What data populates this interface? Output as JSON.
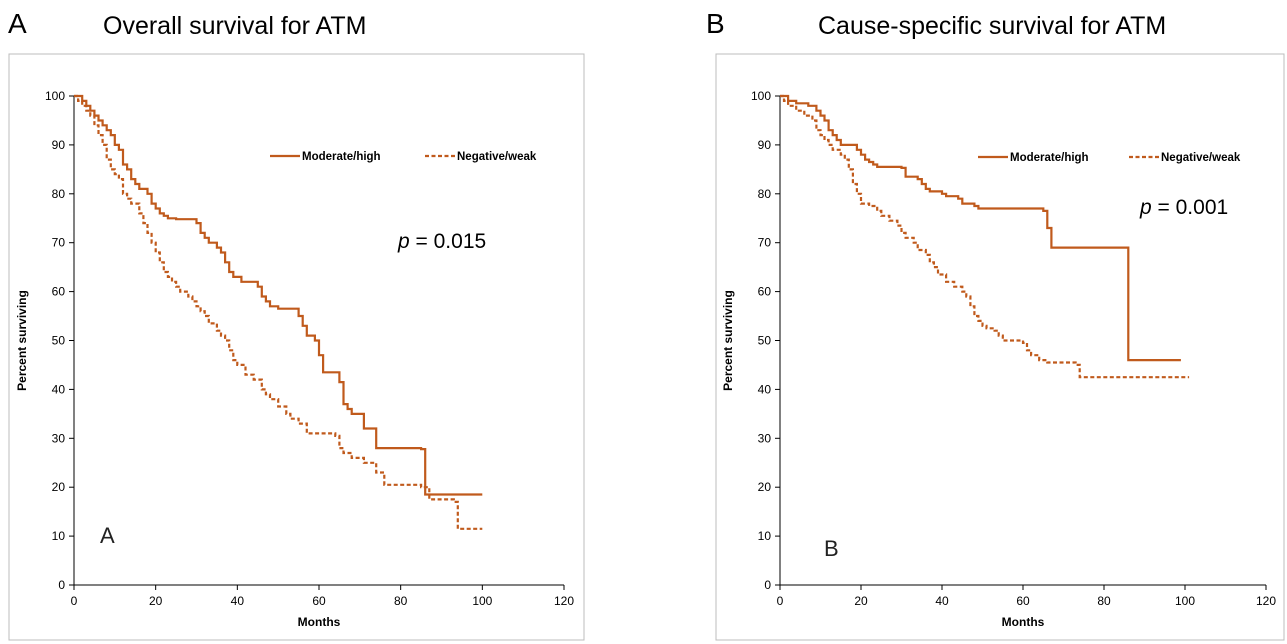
{
  "colors": {
    "series": "#c05a1c",
    "frame": "#bcbcbc"
  },
  "chart_data": [
    {
      "type": "line",
      "panel_letter": "A",
      "title": "Overall survival for ATM",
      "inner_letter": "A",
      "xlabel": "Months",
      "ylabel": "Percent surviving",
      "xlim": [
        0,
        120
      ],
      "ylim": [
        0,
        100
      ],
      "x_ticks": [
        0,
        20,
        40,
        60,
        80,
        100,
        120
      ],
      "y_ticks": [
        0,
        10,
        20,
        30,
        40,
        50,
        60,
        70,
        80,
        90,
        100
      ],
      "p_label": "p",
      "p_value": " = 0.015",
      "legend_position": "top-right",
      "series": [
        {
          "name": "Moderate/high",
          "style": "solid",
          "points": [
            [
              0,
              100
            ],
            [
              2,
              99
            ],
            [
              3,
              98
            ],
            [
              4,
              97
            ],
            [
              5,
              96
            ],
            [
              6,
              95
            ],
            [
              7,
              94
            ],
            [
              8,
              93
            ],
            [
              9,
              92
            ],
            [
              10,
              90
            ],
            [
              11,
              89
            ],
            [
              12,
              86
            ],
            [
              13,
              85
            ],
            [
              14,
              83
            ],
            [
              15,
              82
            ],
            [
              16,
              81
            ],
            [
              18,
              80
            ],
            [
              19,
              78
            ],
            [
              20,
              77
            ],
            [
              21,
              76
            ],
            [
              22,
              75.5
            ],
            [
              23,
              75
            ],
            [
              25,
              74.8
            ],
            [
              30,
              74
            ],
            [
              31,
              72
            ],
            [
              32,
              71
            ],
            [
              33,
              70
            ],
            [
              35,
              69
            ],
            [
              36,
              68
            ],
            [
              37,
              66
            ],
            [
              38,
              64
            ],
            [
              39,
              63
            ],
            [
              41,
              62
            ],
            [
              45,
              61
            ],
            [
              46,
              59
            ],
            [
              47,
              58
            ],
            [
              48,
              57
            ],
            [
              50,
              56.5
            ],
            [
              55,
              55
            ],
            [
              56,
              53
            ],
            [
              57,
              51
            ],
            [
              59,
              50
            ],
            [
              60,
              47
            ],
            [
              61,
              43.5
            ],
            [
              65,
              41.5
            ],
            [
              66,
              37
            ],
            [
              67,
              36
            ],
            [
              68,
              35
            ],
            [
              71,
              32
            ],
            [
              74,
              28
            ],
            [
              85,
              27.8
            ],
            [
              86,
              18.5
            ],
            [
              100,
              18.5
            ]
          ]
        },
        {
          "name": "Negative/weak",
          "style": "dashed",
          "points": [
            [
              0,
              100
            ],
            [
              1,
              99
            ],
            [
              2,
              98
            ],
            [
              3,
              97
            ],
            [
              4,
              96
            ],
            [
              5,
              94
            ],
            [
              6,
              92
            ],
            [
              7,
              90
            ],
            [
              8,
              87
            ],
            [
              9,
              85
            ],
            [
              10,
              84
            ],
            [
              11,
              83
            ],
            [
              12,
              80
            ],
            [
              13,
              79
            ],
            [
              14,
              78
            ],
            [
              16,
              76
            ],
            [
              17,
              74
            ],
            [
              18,
              72
            ],
            [
              19,
              70
            ],
            [
              20,
              68
            ],
            [
              21,
              66
            ],
            [
              22,
              64
            ],
            [
              23,
              63
            ],
            [
              24,
              62
            ],
            [
              25,
              61
            ],
            [
              26,
              60
            ],
            [
              28,
              59
            ],
            [
              29,
              58
            ],
            [
              30,
              57
            ],
            [
              31,
              56
            ],
            [
              32,
              55
            ],
            [
              33,
              53.5
            ],
            [
              35,
              52
            ],
            [
              36,
              51
            ],
            [
              37,
              50
            ],
            [
              38,
              48
            ],
            [
              39,
              46
            ],
            [
              40,
              45
            ],
            [
              42,
              43
            ],
            [
              44,
              42
            ],
            [
              46,
              40
            ],
            [
              47,
              39
            ],
            [
              48,
              38
            ],
            [
              50,
              36.5
            ],
            [
              52,
              35
            ],
            [
              53,
              34
            ],
            [
              55,
              33
            ],
            [
              57,
              31
            ],
            [
              64,
              30.5
            ],
            [
              65,
              28
            ],
            [
              66,
              27
            ],
            [
              68,
              26
            ],
            [
              71,
              25
            ],
            [
              74,
              23
            ],
            [
              76,
              20.5
            ],
            [
              85,
              20
            ],
            [
              87,
              17.5
            ],
            [
              93,
              17
            ],
            [
              94,
              11.5
            ],
            [
              100,
              11.5
            ]
          ]
        }
      ]
    },
    {
      "type": "line",
      "panel_letter": "B",
      "title": "Cause-specific survival for ATM",
      "inner_letter": "B",
      "xlabel": "Months",
      "ylabel": "Percent surviving",
      "xlim": [
        0,
        120
      ],
      "ylim": [
        0,
        100
      ],
      "x_ticks": [
        0,
        20,
        40,
        60,
        80,
        100,
        120
      ],
      "y_ticks": [
        0,
        10,
        20,
        30,
        40,
        50,
        60,
        70,
        80,
        90,
        100
      ],
      "p_label": "p",
      "p_value": " = 0.001",
      "legend_position": "top-right",
      "series": [
        {
          "name": "Moderate/high",
          "style": "solid",
          "points": [
            [
              0,
              100
            ],
            [
              2,
              99
            ],
            [
              4,
              98.5
            ],
            [
              7,
              98
            ],
            [
              9,
              97
            ],
            [
              10,
              96
            ],
            [
              11,
              95
            ],
            [
              12,
              93
            ],
            [
              13,
              92
            ],
            [
              14,
              91
            ],
            [
              15,
              90
            ],
            [
              19,
              89
            ],
            [
              20,
              88
            ],
            [
              21,
              87
            ],
            [
              22,
              86.5
            ],
            [
              23,
              86
            ],
            [
              24,
              85.5
            ],
            [
              30,
              85.3
            ],
            [
              31,
              83.5
            ],
            [
              34,
              83
            ],
            [
              35,
              82
            ],
            [
              36,
              81
            ],
            [
              37,
              80.5
            ],
            [
              40,
              80
            ],
            [
              41,
              79.5
            ],
            [
              44,
              79
            ],
            [
              45,
              78
            ],
            [
              48,
              77.5
            ],
            [
              49,
              77
            ],
            [
              65,
              76.5
            ],
            [
              66,
              73
            ],
            [
              67,
              69
            ],
            [
              85,
              69
            ],
            [
              86,
              46
            ],
            [
              99,
              46
            ]
          ]
        },
        {
          "name": "Negative/weak",
          "style": "dashed",
          "points": [
            [
              0,
              100
            ],
            [
              1,
              99
            ],
            [
              2,
              98
            ],
            [
              4,
              97
            ],
            [
              6,
              96
            ],
            [
              8,
              95
            ],
            [
              9,
              93
            ],
            [
              10,
              92
            ],
            [
              11,
              91
            ],
            [
              12,
              90
            ],
            [
              13,
              89
            ],
            [
              15,
              88
            ],
            [
              16,
              87
            ],
            [
              17,
              85
            ],
            [
              18,
              82
            ],
            [
              19,
              80
            ],
            [
              20,
              78
            ],
            [
              22,
              77.5
            ],
            [
              24,
              76.5
            ],
            [
              25,
              75.5
            ],
            [
              27,
              74.5
            ],
            [
              29,
              73.5
            ],
            [
              30,
              72
            ],
            [
              31,
              71
            ],
            [
              33,
              70
            ],
            [
              34,
              68.5
            ],
            [
              36,
              67.5
            ],
            [
              37,
              66
            ],
            [
              38,
              65
            ],
            [
              39,
              63.5
            ],
            [
              41,
              62
            ],
            [
              43,
              61
            ],
            [
              45,
              60
            ],
            [
              46,
              59
            ],
            [
              47,
              57
            ],
            [
              48,
              55
            ],
            [
              49,
              54
            ],
            [
              50,
              53
            ],
            [
              51,
              52.5
            ],
            [
              53,
              52
            ],
            [
              54,
              51
            ],
            [
              55,
              50
            ],
            [
              60,
              49.5
            ],
            [
              61,
              48
            ],
            [
              62,
              47
            ],
            [
              64,
              46
            ],
            [
              66,
              45.5
            ],
            [
              73,
              45
            ],
            [
              74,
              42.5
            ],
            [
              101,
              42.5
            ]
          ]
        }
      ]
    }
  ]
}
